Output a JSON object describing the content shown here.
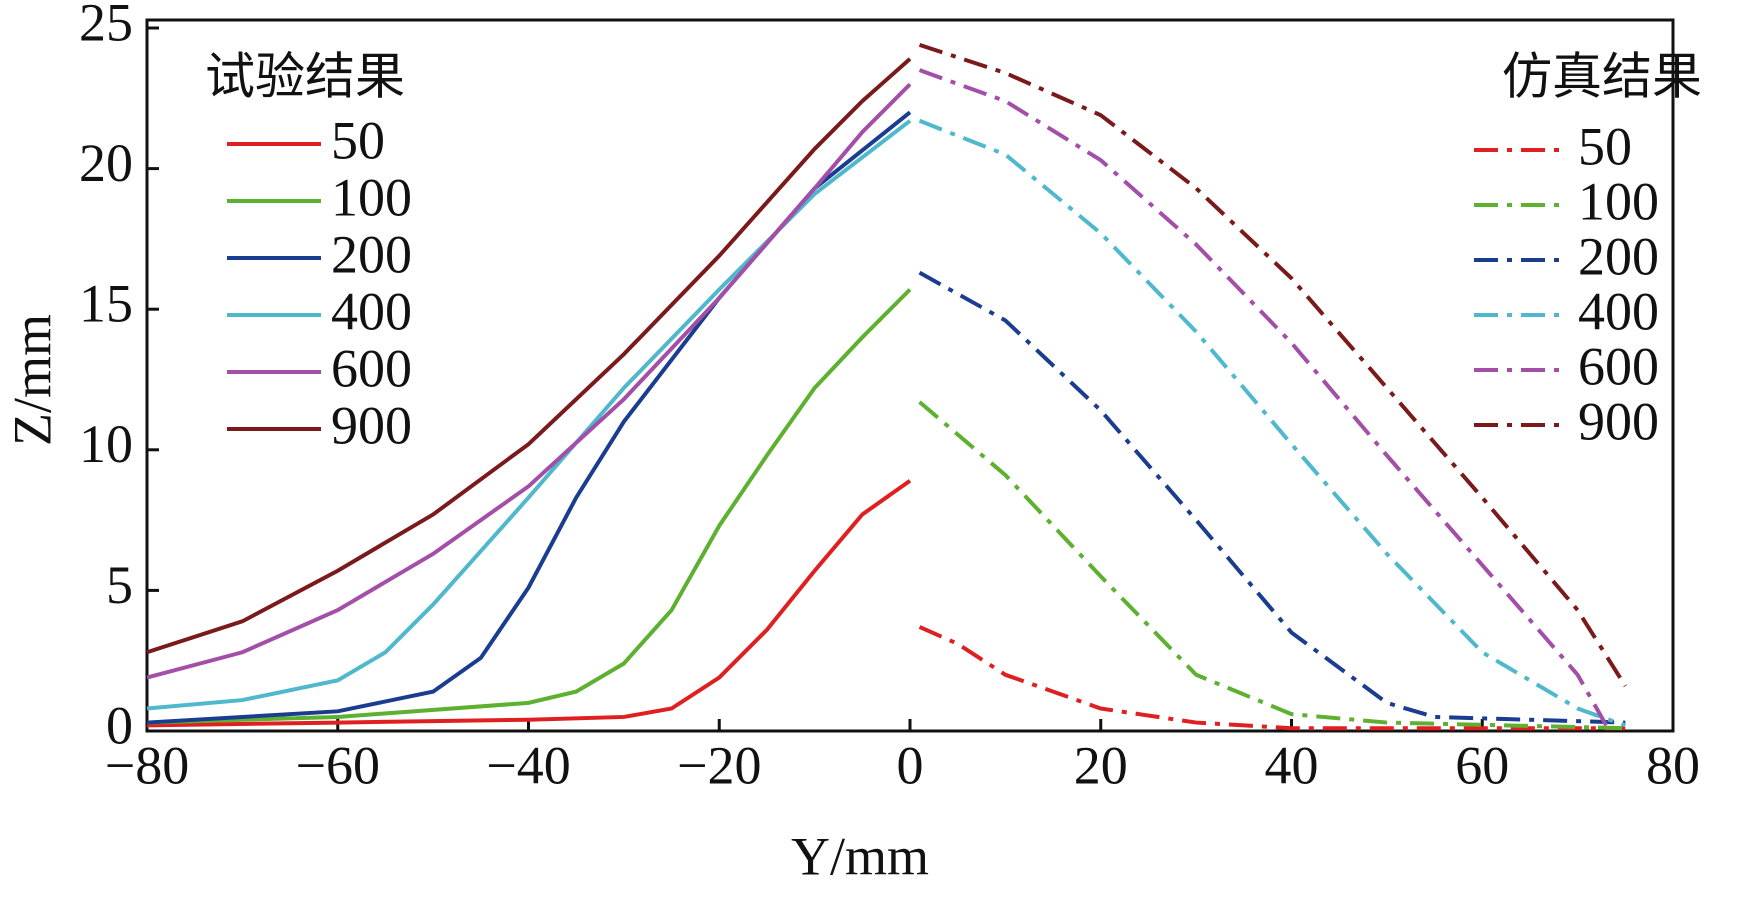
{
  "chart_data": {
    "type": "line",
    "x_label": "Y/mm",
    "y_label": "Z/mm",
    "legend_titles": [
      "试验结果",
      "仿真结果"
    ],
    "xlim": [
      -80,
      80
    ],
    "ylim": [
      0,
      25
    ],
    "xticks": [
      {
        "value": -80,
        "label": "−80"
      },
      {
        "value": -60,
        "label": "−60"
      },
      {
        "value": -40,
        "label": "−40"
      },
      {
        "value": -20,
        "label": "−20"
      },
      0,
      20,
      40,
      60,
      80
    ],
    "yticks": [
      0,
      5,
      10,
      15,
      20,
      25
    ],
    "series": [
      {
        "name": "50",
        "group": 0,
        "style": "solid",
        "color": "#e02020",
        "x": [
          -80,
          -60,
          -40,
          -30,
          -25,
          -20,
          -15,
          -10,
          -5,
          0
        ],
        "values": [
          0.2,
          0.3,
          0.4,
          0.5,
          0.8,
          1.9,
          3.6,
          5.7,
          7.7,
          8.9
        ]
      },
      {
        "name": "100",
        "group": 0,
        "style": "solid",
        "color": "#5db030",
        "x": [
          -80,
          -60,
          -40,
          -35,
          -30,
          -25,
          -20,
          -15,
          -10,
          -5,
          0
        ],
        "values": [
          0.3,
          0.5,
          1.0,
          1.4,
          2.4,
          4.3,
          7.3,
          9.8,
          12.2,
          14,
          15.7
        ]
      },
      {
        "name": "200",
        "group": 0,
        "style": "solid",
        "color": "#1a3d8f",
        "x": [
          -80,
          -60,
          -50,
          -45,
          -40,
          -35,
          -30,
          -20,
          -10,
          0
        ],
        "values": [
          0.3,
          0.7,
          1.4,
          2.6,
          5.1,
          8.3,
          11,
          15.4,
          19.3,
          22
        ]
      },
      {
        "name": "400",
        "group": 0,
        "style": "solid",
        "color": "#4fb8cc",
        "x": [
          -80,
          -70,
          -60,
          -55,
          -50,
          -40,
          -30,
          -20,
          -10,
          0
        ],
        "values": [
          0.8,
          1.1,
          1.8,
          2.8,
          4.5,
          8.3,
          12.2,
          15.7,
          19.1,
          21.7
        ]
      },
      {
        "name": "600",
        "group": 0,
        "style": "solid",
        "color": "#a34fa8",
        "x": [
          -80,
          -70,
          -60,
          -50,
          -40,
          -30,
          -20,
          -10,
          -5,
          0
        ],
        "values": [
          1.9,
          2.8,
          4.3,
          6.3,
          8.7,
          11.8,
          15.4,
          19.3,
          21.3,
          23
        ]
      },
      {
        "name": "900",
        "group": 0,
        "style": "solid",
        "color": "#7a1a1a",
        "x": [
          -80,
          -70,
          -60,
          -50,
          -40,
          -30,
          -20,
          -10,
          -5,
          0
        ],
        "values": [
          2.8,
          3.9,
          5.7,
          7.7,
          10.2,
          13.4,
          16.9,
          20.7,
          22.4,
          23.9
        ]
      },
      {
        "name": "50",
        "group": 1,
        "style": "dashdot",
        "color": "#e02020",
        "x": [
          1,
          5,
          10,
          20,
          30,
          40,
          75
        ],
        "values": [
          3.7,
          3.1,
          2.0,
          0.8,
          0.3,
          0.1,
          0.1
        ]
      },
      {
        "name": "100",
        "group": 1,
        "style": "dashdot",
        "color": "#5db030",
        "x": [
          1,
          10,
          20,
          30,
          40,
          50,
          75
        ],
        "values": [
          11.7,
          9.1,
          5.5,
          2.0,
          0.6,
          0.3,
          0.1
        ]
      },
      {
        "name": "200",
        "group": 1,
        "style": "dashdot",
        "color": "#1a3d8f",
        "x": [
          1,
          10,
          20,
          30,
          40,
          50,
          55,
          75
        ],
        "values": [
          16.3,
          14.6,
          11.4,
          7.5,
          3.5,
          1.0,
          0.5,
          0.3
        ]
      },
      {
        "name": "400",
        "group": 1,
        "style": "dashdot",
        "color": "#4fb8cc",
        "x": [
          1,
          10,
          20,
          30,
          40,
          50,
          60,
          70,
          75
        ],
        "values": [
          21.7,
          20.5,
          17.7,
          14.2,
          10.2,
          6.3,
          2.8,
          0.8,
          0.2
        ]
      },
      {
        "name": "600",
        "group": 1,
        "style": "dashdot",
        "color": "#a34fa8",
        "x": [
          1,
          10,
          20,
          30,
          40,
          50,
          60,
          70,
          73
        ],
        "values": [
          23.5,
          22.4,
          20.3,
          17.3,
          13.8,
          9.8,
          5.9,
          2.0,
          0.2
        ]
      },
      {
        "name": "900",
        "group": 1,
        "style": "dashdot",
        "color": "#7a1a1a",
        "x": [
          1,
          10,
          20,
          30,
          40,
          50,
          60,
          70,
          75
        ],
        "values": [
          24.4,
          23.4,
          21.9,
          19.3,
          16.1,
          12.2,
          8.3,
          4.3,
          1.6
        ]
      }
    ]
  }
}
